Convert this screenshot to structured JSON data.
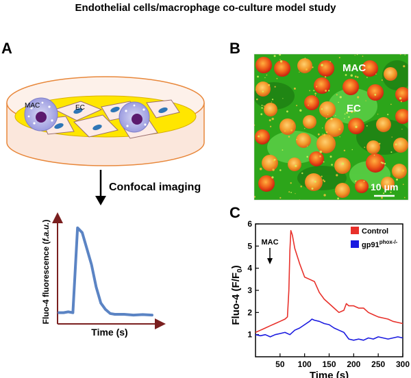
{
  "title": "Endothelial cells/macrophage co-culture model study",
  "panel_a": {
    "label": "A",
    "mac_label": "MAC",
    "ec_label": "EC",
    "step_label": "Confocal imaging",
    "trace_ylabel_prefix": "Fluo-4 fluorescence (",
    "trace_ylabel_unit": "f.a.u.",
    "trace_ylabel_suffix": ")",
    "trace_xlabel": "Time (s)"
  },
  "panel_b": {
    "label": "B",
    "mac_label": "MAC",
    "ec_label": "EC",
    "scale_label": "10 μm"
  },
  "panel_c": {
    "label": "C",
    "annotation": "MAC",
    "legend_control": "Control",
    "legend_gp91": "gp91",
    "legend_gp91_sup": "phox-/-",
    "ylabel_main": "Fluo-4 (F/F",
    "ylabel_sub": "0",
    "ylabel_end": ")"
  },
  "colors": {
    "control": "#e8302a",
    "gp91": "#1a1ae0",
    "trace": "#5b84c4",
    "axis": "#7a1f1f"
  },
  "chart_data": {
    "type": "line",
    "xlabel": "Time (s)",
    "ylabel": "Fluo-4 (F/F0)",
    "xlim": [
      0,
      300
    ],
    "ylim": [
      0,
      6
    ],
    "xticks": [
      50,
      100,
      150,
      200,
      250,
      300
    ],
    "yticks": [
      1,
      2,
      3,
      4,
      5,
      6
    ],
    "legend_position": "top-right",
    "series": [
      {
        "name": "Control",
        "color": "#e8302a",
        "x": [
          0,
          10,
          20,
          30,
          40,
          50,
          60,
          65,
          68,
          70,
          72,
          75,
          80,
          90,
          100,
          110,
          120,
          130,
          140,
          150,
          160,
          170,
          180,
          185,
          190,
          200,
          210,
          220,
          230,
          240,
          250,
          260,
          270,
          280,
          290,
          300
        ],
        "y": [
          1.1,
          1.2,
          1.3,
          1.4,
          1.5,
          1.6,
          1.7,
          1.8,
          3.0,
          4.8,
          5.7,
          5.5,
          4.9,
          4.2,
          3.6,
          3.5,
          3.4,
          2.9,
          2.6,
          2.4,
          2.2,
          2.0,
          2.1,
          2.4,
          2.3,
          2.3,
          2.2,
          2.2,
          2.0,
          1.9,
          1.8,
          1.75,
          1.7,
          1.6,
          1.55,
          1.5
        ]
      },
      {
        "name": "gp91phox-/-",
        "color": "#1a1ae0",
        "x": [
          0,
          10,
          20,
          30,
          40,
          50,
          60,
          70,
          80,
          90,
          100,
          110,
          115,
          120,
          130,
          140,
          150,
          160,
          170,
          180,
          190,
          200,
          210,
          220,
          230,
          240,
          250,
          260,
          270,
          280,
          290,
          300
        ],
        "y": [
          1.0,
          0.95,
          1.0,
          0.9,
          1.0,
          1.05,
          1.1,
          1.0,
          1.2,
          1.3,
          1.45,
          1.6,
          1.7,
          1.65,
          1.6,
          1.5,
          1.45,
          1.3,
          1.2,
          1.1,
          0.8,
          0.75,
          0.8,
          0.75,
          0.85,
          0.8,
          0.9,
          0.85,
          0.8,
          0.85,
          0.9,
          0.85
        ]
      }
    ]
  },
  "trace_data": {
    "x": [
      0,
      0.5,
      1,
      1.5,
      2,
      2.5,
      3,
      3.5,
      4,
      4.5,
      5,
      5.5,
      6,
      7,
      8,
      9,
      10
    ],
    "y": [
      1,
      1,
      1.05,
      1,
      6.3,
      6.0,
      5.0,
      4.0,
      2.6,
      1.6,
      1.2,
      0.95,
      0.9,
      0.9,
      0.85,
      0.88,
      0.85
    ]
  }
}
